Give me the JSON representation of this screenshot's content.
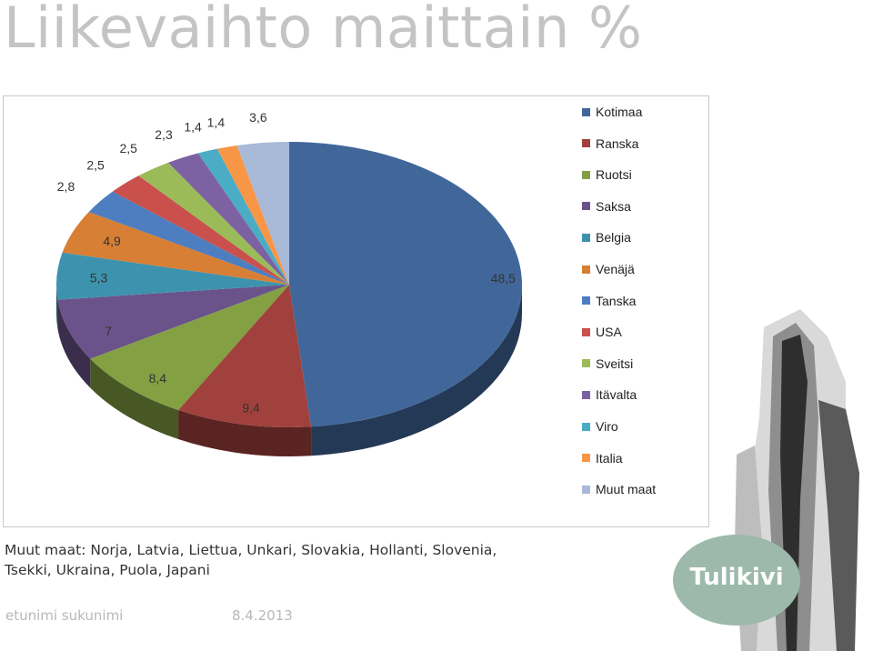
{
  "page": {
    "title": "Liikevaihto maittain %",
    "note": "Muut maat: Norja, Latvia, Liettua, Unkari, Slovakia, Hollanti, Slovenia, Tsekki, Ukraina, Puola, Japani",
    "footer_name": "etunimi sukunimi",
    "footer_date": "8.4.2013",
    "logo_text": "Tulikivi"
  },
  "chart_data": {
    "type": "pie",
    "title": "",
    "legend_position": "right",
    "categories": [
      "Kotimaa",
      "Ranska",
      "Ruotsi",
      "Saksa",
      "Belgia",
      "Venäjä",
      "Tanska",
      "USA",
      "Sveitsi",
      "Itävalta",
      "Viro",
      "Italia",
      "Muut maat"
    ],
    "values": [
      48.5,
      9.4,
      8.4,
      7,
      5.3,
      4.9,
      2.8,
      2.5,
      2.5,
      2.3,
      1.4,
      1.4,
      3.6
    ],
    "value_labels": [
      "48,5",
      "9,4",
      "8,4",
      "7",
      "5,3",
      "4,9",
      "2,8",
      "2,5",
      "2,5",
      "2,3",
      "1,4",
      "1,4",
      "3,6"
    ],
    "colors": [
      "#41679a",
      "#a1413d",
      "#83a043",
      "#6a538a",
      "#3d93ae",
      "#d77f35",
      "#4d7ec0",
      "#c9504d",
      "#9bbb59",
      "#7c62a0",
      "#4bacc6",
      "#f79646",
      "#a9b9d8"
    ]
  }
}
